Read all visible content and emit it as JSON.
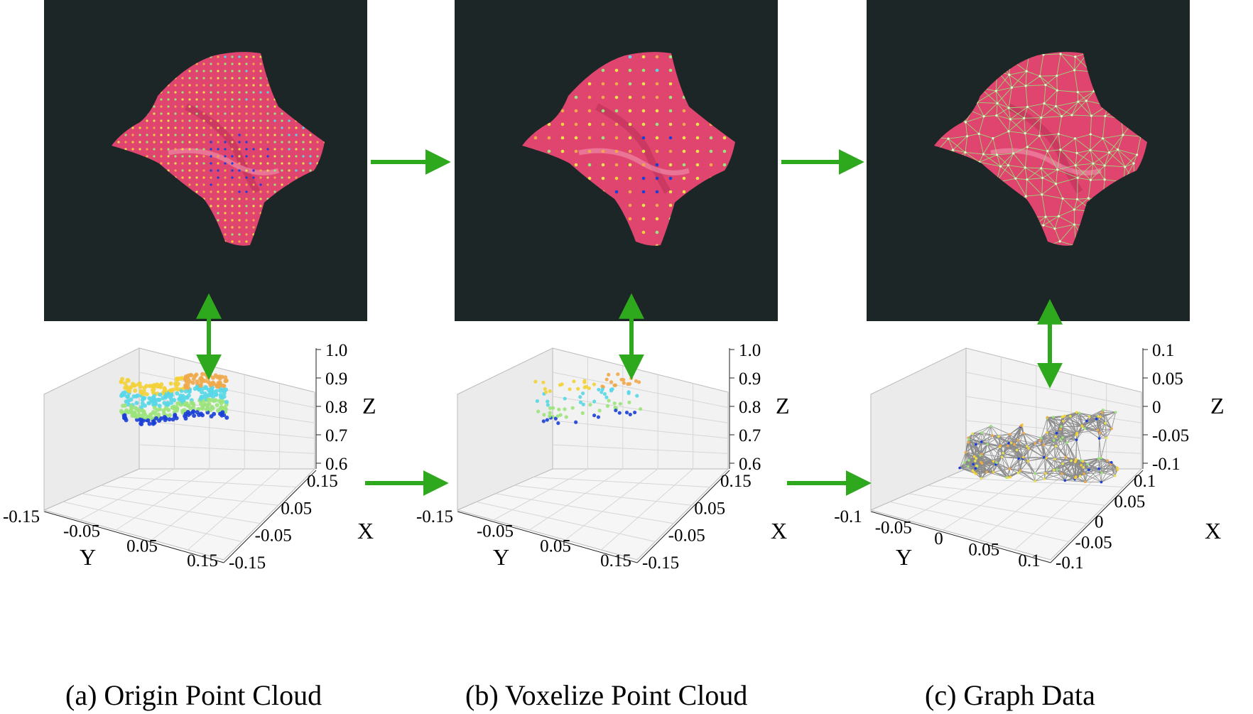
{
  "panels": [
    {
      "id": "a",
      "caption": "(a) Origin Point Cloud",
      "overlay": "dots-dense",
      "z_ticks": [
        "1.0",
        "0.9",
        "0.8",
        "0.7",
        "0.6"
      ],
      "x_ticks": [
        "0.15",
        "0.05",
        "-0.05",
        "-0.15"
      ],
      "y_ticks": [
        "-0.15",
        "-0.05",
        "0.05",
        "0.15"
      ],
      "xlabel": "X",
      "ylabel": "Y",
      "zlabel": "Z"
    },
    {
      "id": "b",
      "caption": "(b) Voxelize Point Cloud",
      "overlay": "dots-sparse",
      "z_ticks": [
        "1.0",
        "0.9",
        "0.8",
        "0.7",
        "0.6"
      ],
      "x_ticks": [
        "0.15",
        "0.05",
        "-0.05",
        "-0.15"
      ],
      "y_ticks": [
        "-0.15",
        "-0.05",
        "0.05",
        "0.15"
      ],
      "xlabel": "X",
      "ylabel": "Y",
      "zlabel": "Z"
    },
    {
      "id": "c",
      "caption": "(c) Graph Data",
      "overlay": "mesh",
      "z_ticks": [
        "0.1",
        "0.05",
        "0",
        "-0.05",
        "-0.1"
      ],
      "x_ticks": [
        "0.1",
        "0.05",
        "0",
        "-0.05",
        "-0.1"
      ],
      "y_ticks": [
        "-0.1",
        "-0.05",
        "0",
        "0.05",
        "0.1"
      ],
      "xlabel": "X",
      "ylabel": "Y",
      "zlabel": "Z"
    }
  ],
  "colors": {
    "arrow": "#2ea81c",
    "cloth": "#e0456f",
    "background": "#1d2626",
    "mesh": "#8cf07a"
  }
}
